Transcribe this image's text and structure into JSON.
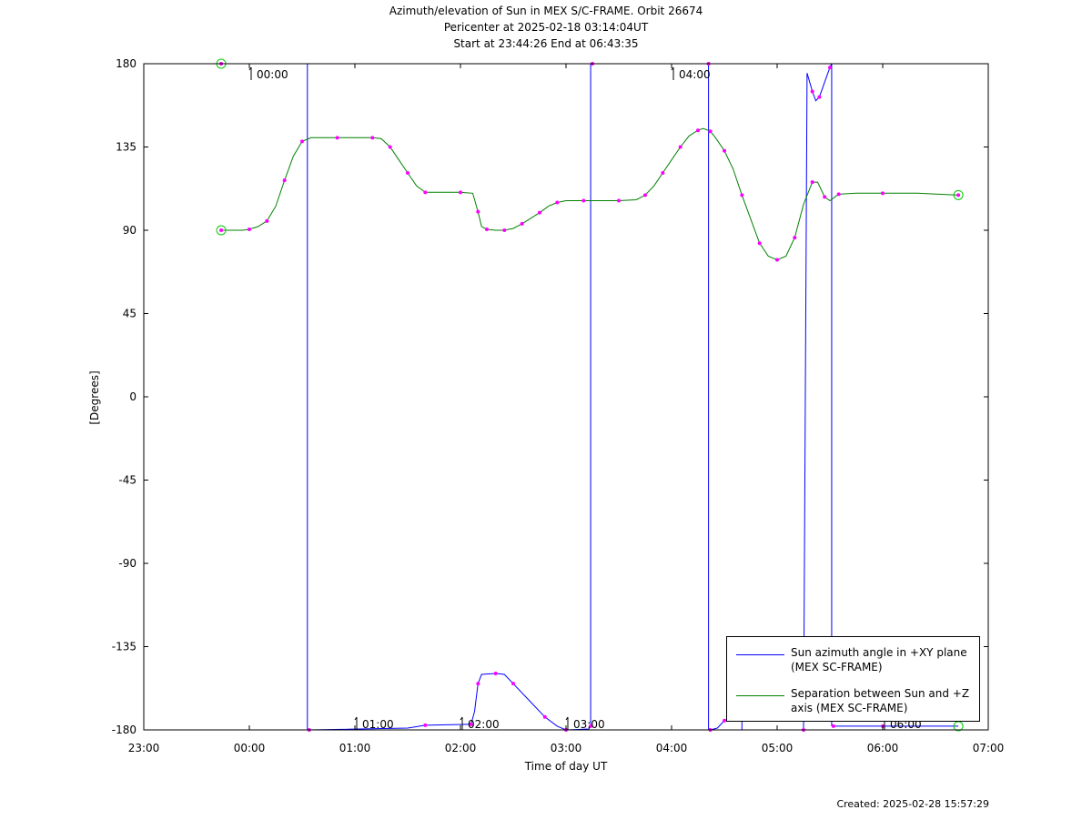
{
  "header": {
    "title": "Azimuth/elevation of Sun in MEX S/C-FRAME.  Orbit 26674",
    "subtitle1": "Pericenter at 2025-02-18 03:14:04UT",
    "subtitle2": "Start at 23:44:26 End at 06:43:35"
  },
  "footer": {
    "created": "Created: 2025-02-28 15:57:29"
  },
  "chart_data": {
    "type": "line",
    "xlabel": "Time of day UT",
    "ylabel": "[Degrees]",
    "x_unit": "time of day UT (hours; 23:00 on previous day)",
    "xlim": [
      "23:00",
      "07:00"
    ],
    "ylim": [
      -180,
      180
    ],
    "grid": false,
    "legend_position": "bottom-right",
    "x_tick_labels": [
      "23:00",
      "00:00",
      "01:00",
      "02:00",
      "03:00",
      "04:00",
      "05:00",
      "06:00",
      "07:00"
    ],
    "y_ticks": [
      180,
      135,
      90,
      45,
      0,
      -45,
      -90,
      -135,
      -180
    ],
    "colors": {
      "azimuth": "#0000ff",
      "separation": "#008000",
      "markers": "#ff00ff",
      "endpoints": "#00cc00"
    },
    "series": [
      {
        "name": "Sun azimuth angle in +XY plane (MEX SC-FRAME)",
        "color": "#0000ff",
        "segments": [
          [
            [
              "23:44",
              180
            ],
            [
              "00:33",
              180
            ]
          ],
          [
            [
              "00:34",
              -180
            ],
            [
              "01:30",
              -179
            ],
            [
              "01:40",
              -177.5
            ],
            [
              "02:05",
              -177
            ],
            [
              "02:06",
              -177
            ],
            [
              "02:08",
              -170
            ],
            [
              "02:10",
              -155
            ],
            [
              "02:12",
              -150
            ],
            [
              "02:20",
              -149.5
            ],
            [
              "02:25",
              -150
            ],
            [
              "02:30",
              -155
            ],
            [
              "02:40",
              -165
            ],
            [
              "02:48",
              -173
            ],
            [
              "02:55",
              -178
            ],
            [
              "03:00",
              -180
            ],
            [
              "03:13",
              -179.5
            ],
            [
              "03:14",
              -178
            ]
          ],
          [
            [
              "03:15",
              180
            ],
            [
              "03:30",
              180.3
            ],
            [
              "03:50",
              180.5
            ],
            [
              "04:10",
              180
            ],
            [
              "04:21",
              180
            ]
          ],
          [
            [
              "04:22",
              -180
            ],
            [
              "04:26",
              -179
            ],
            [
              "04:30",
              -175
            ],
            [
              "04:40",
              -170
            ]
          ],
          [
            [
              "05:15",
              -180
            ],
            [
              "05:17",
              175
            ],
            [
              "05:20",
              165
            ],
            [
              "05:22",
              160
            ],
            [
              "05:24",
              162
            ],
            [
              "05:27",
              170
            ],
            [
              "05:30",
              178
            ],
            [
              "05:31",
              180
            ]
          ],
          [
            [
              "05:32",
              -178
            ],
            [
              "05:45",
              -178
            ],
            [
              "06:00",
              -178
            ],
            [
              "06:43",
              -178
            ]
          ]
        ]
      },
      {
        "name": "Separation between Sun and +Z axis (MEX SC-FRAME)",
        "color": "#008000",
        "points": [
          [
            "23:44",
            90
          ],
          [
            "23:56",
            90
          ],
          [
            "00:00",
            90.5
          ],
          [
            "00:05",
            92
          ],
          [
            "00:10",
            95
          ],
          [
            "00:15",
            103
          ],
          [
            "00:20",
            117
          ],
          [
            "00:25",
            130
          ],
          [
            "00:30",
            138
          ],
          [
            "00:35",
            140
          ],
          [
            "00:50",
            140
          ],
          [
            "01:00",
            140
          ],
          [
            "01:10",
            140
          ],
          [
            "01:15",
            139.5
          ],
          [
            "01:20",
            135
          ],
          [
            "01:25",
            128
          ],
          [
            "01:30",
            121
          ],
          [
            "01:35",
            114
          ],
          [
            "01:40",
            110.5
          ],
          [
            "01:50",
            110.5
          ],
          [
            "02:00",
            110.5
          ],
          [
            "02:07",
            110
          ],
          [
            "02:10",
            100
          ],
          [
            "02:12",
            92
          ],
          [
            "02:15",
            90.5
          ],
          [
            "02:20",
            90
          ],
          [
            "02:25",
            90
          ],
          [
            "02:30",
            91
          ],
          [
            "02:35",
            93.5
          ],
          [
            "02:40",
            96.5
          ],
          [
            "02:45",
            99.5
          ],
          [
            "02:50",
            103
          ],
          [
            "02:55",
            105
          ],
          [
            "03:00",
            106
          ],
          [
            "03:10",
            106
          ],
          [
            "03:20",
            106
          ],
          [
            "03:30",
            106
          ],
          [
            "03:40",
            106.5
          ],
          [
            "03:45",
            109
          ],
          [
            "03:50",
            114
          ],
          [
            "03:55",
            121
          ],
          [
            "04:00",
            128
          ],
          [
            "04:05",
            135
          ],
          [
            "04:10",
            141
          ],
          [
            "04:15",
            144
          ],
          [
            "04:18",
            145
          ],
          [
            "04:22",
            143.5
          ],
          [
            "04:25",
            140
          ],
          [
            "04:30",
            133
          ],
          [
            "04:35",
            123
          ],
          [
            "04:40",
            109
          ],
          [
            "04:45",
            96
          ],
          [
            "04:50",
            83
          ],
          [
            "04:55",
            76
          ],
          [
            "05:00",
            74
          ],
          [
            "05:05",
            76
          ],
          [
            "05:10",
            86
          ],
          [
            "05:15",
            104
          ],
          [
            "05:20",
            116
          ],
          [
            "05:23",
            116
          ],
          [
            "05:27",
            108
          ],
          [
            "05:30",
            106
          ],
          [
            "05:35",
            109.5
          ],
          [
            "05:45",
            110
          ],
          [
            "06:00",
            110
          ],
          [
            "06:20",
            110
          ],
          [
            "06:43",
            109
          ]
        ]
      }
    ],
    "annotations": [
      {
        "text": "00:00",
        "x": "00:00",
        "y": 180
      },
      {
        "text": "01:00",
        "x": "01:00",
        "y": -180
      },
      {
        "text": "02:00",
        "x": "02:00",
        "y": -180
      },
      {
        "text": "03:00",
        "x": "03:00",
        "y": -180
      },
      {
        "text": "04:00",
        "x": "04:00",
        "y": 180
      },
      {
        "text": "06:00",
        "x": "06:00",
        "y": -180
      }
    ]
  }
}
